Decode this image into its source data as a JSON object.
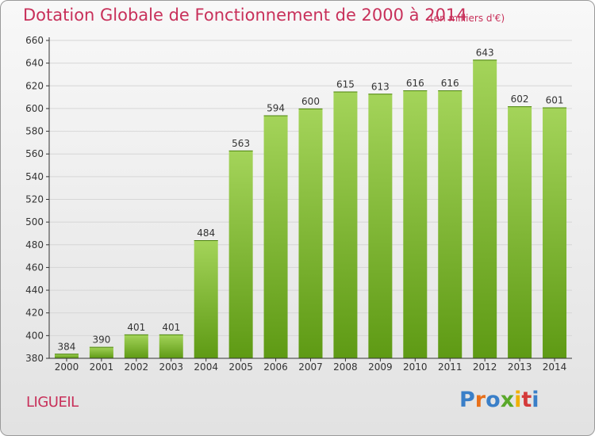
{
  "header": {
    "title": "Dotation Globale de Fonctionnement de 2000 à 2014",
    "unit": "(en milliers d'€)"
  },
  "commune": "LIGUEIL",
  "logo": {
    "text": "Proxiti",
    "letter_colors": [
      "#3a7fc8",
      "#e8701a",
      "#3a7fc8",
      "#5aa82a",
      "#f0b000",
      "#d43a3a",
      "#3a7fc8"
    ]
  },
  "colors": {
    "title": "#c8305a",
    "bar_light": "#a4d45a",
    "bar_dark": "#5e9a14",
    "grid": "#d6d6d6",
    "axis": "#333333"
  },
  "chart_data": {
    "type": "bar",
    "title": "Dotation Globale de Fonctionnement de 2000 à 2014",
    "subtitle": "(en milliers d'€)",
    "categories": [
      "2000",
      "2001",
      "2002",
      "2003",
      "2004",
      "2005",
      "2006",
      "2007",
      "2008",
      "2009",
      "2010",
      "2011",
      "2012",
      "2013",
      "2014"
    ],
    "values": [
      384,
      390,
      401,
      401,
      484,
      563,
      594,
      600,
      615,
      613,
      616,
      616,
      643,
      602,
      601
    ],
    "ylim": [
      380,
      660
    ],
    "yticks": [
      380,
      400,
      420,
      440,
      460,
      480,
      500,
      520,
      540,
      560,
      580,
      600,
      620,
      640,
      660
    ],
    "grid": true,
    "legend": "none"
  }
}
